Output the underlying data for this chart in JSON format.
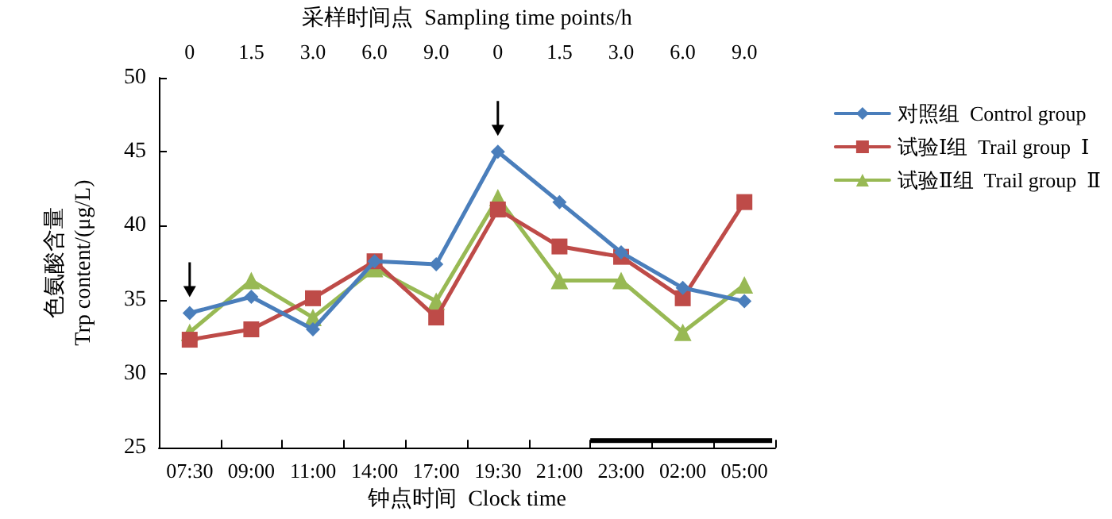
{
  "chart_data": {
    "type": "line",
    "xlabel": "钟点时间  Clock time",
    "ylabel": "色氨酸含量\nTrp content/(μg/L)",
    "x2label": "采样时间点  Sampling time points/h",
    "categories": [
      "07:30",
      "09:00",
      "11:00",
      "14:00",
      "17:00",
      "19:30",
      "21:00",
      "23:00",
      "02:00",
      "05:00"
    ],
    "annotations": [
      "0",
      "1.5",
      "3.0",
      "6.0",
      "9.0",
      "0",
      "1.5",
      "3.0",
      "6.0",
      "9.0"
    ],
    "series": [
      {
        "name": "对照组  Control group",
        "color": "#4a7ebb",
        "marker": "diamond",
        "values": [
          34.1,
          35.2,
          33.0,
          37.6,
          37.4,
          45.0,
          41.6,
          38.2,
          35.8,
          34.9
        ]
      },
      {
        "name": "试验Ⅰ组  Trail group  Ⅰ",
        "color": "#be4b48",
        "marker": "square",
        "values": [
          32.3,
          33.0,
          35.1,
          37.6,
          33.8,
          41.1,
          38.6,
          37.9,
          35.1,
          41.6
        ]
      },
      {
        "name": "试验Ⅱ组  Trail group  Ⅱ",
        "color": "#98b954",
        "marker": "triangle",
        "values": [
          32.8,
          36.3,
          33.8,
          37.1,
          34.9,
          41.9,
          36.3,
          36.3,
          32.8,
          36.0
        ]
      }
    ],
    "ylim": [
      25,
      50
    ],
    "yticks": [
      25,
      30,
      35,
      40,
      45,
      50
    ],
    "grid": false,
    "legend": "right",
    "line_style": "solid"
  }
}
